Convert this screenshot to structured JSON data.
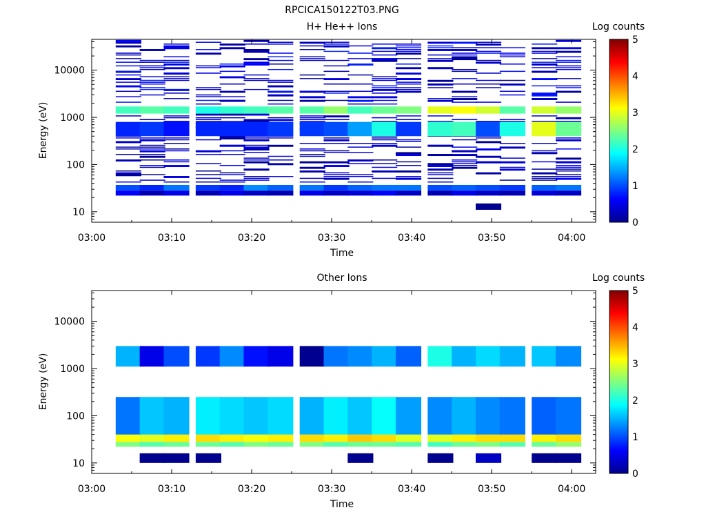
{
  "figure_title": "RPCICA150122T03.PNG",
  "chart_data": [
    {
      "type": "heatmap",
      "title": "H+ He++ Ions",
      "xlabel": "Time",
      "ylabel": "Energy (eV)",
      "y_scale": "log",
      "ylim": [
        6,
        45000
      ],
      "xlim": [
        "03:00",
        "04:03"
      ],
      "x_ticks": [
        "03:00",
        "03:10",
        "03:20",
        "03:30",
        "03:40",
        "03:50",
        "04:00"
      ],
      "y_ticks": [
        "10",
        "100",
        "1000",
        "10000"
      ],
      "colorbar": {
        "label": "Log counts",
        "min": 0,
        "max": 5,
        "ticks": [
          "0",
          "1",
          "2",
          "3",
          "4",
          "5"
        ]
      },
      "time_bins_start": [
        "03:03",
        "03:06",
        "03:09",
        "03:13",
        "03:16",
        "03:19",
        "03:22",
        "03:26",
        "03:29",
        "03:32",
        "03:35",
        "03:38",
        "03:42",
        "03:45",
        "03:48",
        "03:51",
        "03:55",
        "03:58"
      ],
      "bands": [
        {
          "energy_range": [
            1200,
            1700
          ],
          "log_counts": [
            2.2,
            2.3,
            2.2,
            2.0,
            2.1,
            2.2,
            2.3,
            2.3,
            2.6,
            2.2,
            2.4,
            2.5,
            3.0,
            3.1,
            2.9,
            2.3,
            2.9,
            2.6
          ]
        },
        {
          "energy_range": [
            400,
            800
          ],
          "log_counts": [
            0.8,
            0.9,
            0.7,
            0.8,
            0.8,
            0.8,
            0.9,
            0.9,
            1.0,
            1.4,
            2.0,
            0.9,
            2.1,
            2.2,
            1.0,
            2.0,
            3.0,
            2.4
          ]
        },
        {
          "energy_range": [
            28,
            37
          ],
          "log_counts": [
            1.0,
            0.8,
            1.2,
            0.9,
            0.8,
            1.3,
            1.1,
            1.2,
            0.9,
            1.1,
            1.2,
            1.2,
            1.0,
            1.1,
            1.0,
            0.9,
            1.1,
            1.2
          ]
        },
        {
          "energy_range": [
            22,
            28
          ],
          "log_counts": [
            0.6,
            0.2,
            0.5,
            0.2,
            0.5,
            0.3,
            0.2,
            0.5,
            0.3,
            0.4,
            0.6,
            0.3,
            0.2,
            0.5,
            0.3,
            0.2,
            0.4,
            0.3
          ]
        },
        {
          "energy_range": [
            11,
            15
          ],
          "log_counts": [
            null,
            null,
            null,
            null,
            null,
            null,
            null,
            null,
            null,
            null,
            null,
            null,
            null,
            null,
            0.0,
            null,
            null,
            null
          ]
        },
        {
          "energy_range": [
            1800,
            40000
          ],
          "log_counts": "sparse 0-0.8"
        },
        {
          "energy_range": [
            40,
            1100
          ],
          "log_counts": "sparse 0-0.6"
        }
      ]
    },
    {
      "type": "heatmap",
      "title": "Other Ions",
      "xlabel": "Time",
      "ylabel": "Energy (eV)",
      "y_scale": "log",
      "ylim": [
        6,
        45000
      ],
      "xlim": [
        "03:00",
        "04:03"
      ],
      "x_ticks": [
        "03:00",
        "03:10",
        "03:20",
        "03:30",
        "03:40",
        "03:50",
        "04:00"
      ],
      "y_ticks": [
        "10",
        "100",
        "1000",
        "10000"
      ],
      "colorbar": {
        "label": "Log counts",
        "min": 0,
        "max": 5,
        "ticks": [
          "0",
          "1",
          "2",
          "3",
          "4",
          "5"
        ]
      },
      "time_bins_start": [
        "03:03",
        "03:06",
        "03:09",
        "03:13",
        "03:16",
        "03:19",
        "03:22",
        "03:26",
        "03:29",
        "03:32",
        "03:35",
        "03:38",
        "03:42",
        "03:45",
        "03:48",
        "03:51",
        "03:55",
        "03:58"
      ],
      "bands": [
        {
          "energy_range": [
            28,
            40
          ],
          "log_counts": [
            3.1,
            3.0,
            3.2,
            3.3,
            3.2,
            3.1,
            3.2,
            3.3,
            3.2,
            3.4,
            3.3,
            3.0,
            3.0,
            3.2,
            3.3,
            3.3,
            3.2,
            3.3
          ]
        },
        {
          "energy_range": [
            22,
            28
          ],
          "log_counts": [
            2.5,
            2.3,
            2.4,
            2.4,
            2.3,
            2.5,
            2.4,
            2.5,
            2.3,
            2.4,
            2.4,
            2.3,
            2.2,
            2.4,
            2.5,
            2.3,
            2.4,
            2.6
          ]
        },
        {
          "energy_range": [
            40,
            250
          ],
          "log_counts": [
            1.2,
            1.6,
            1.5,
            1.8,
            1.7,
            1.6,
            1.7,
            1.5,
            1.8,
            1.6,
            1.9,
            1.4,
            1.3,
            1.5,
            1.3,
            1.2,
            1.1,
            1.2
          ]
        },
        {
          "energy_range": [
            1100,
            3000
          ],
          "log_counts": [
            1.5,
            0.5,
            1.0,
            0.9,
            1.3,
            0.7,
            0.5,
            0.0,
            1.2,
            1.3,
            1.5,
            1.1,
            2.0,
            1.5,
            1.7,
            1.5,
            1.6,
            1.3
          ]
        },
        {
          "energy_range": [
            10,
            16
          ],
          "log_counts": [
            null,
            0.0,
            0.0,
            0.0,
            null,
            null,
            null,
            null,
            null,
            0.0,
            null,
            null,
            0.0,
            null,
            0.3,
            null,
            0.0,
            0.0
          ]
        }
      ]
    }
  ]
}
